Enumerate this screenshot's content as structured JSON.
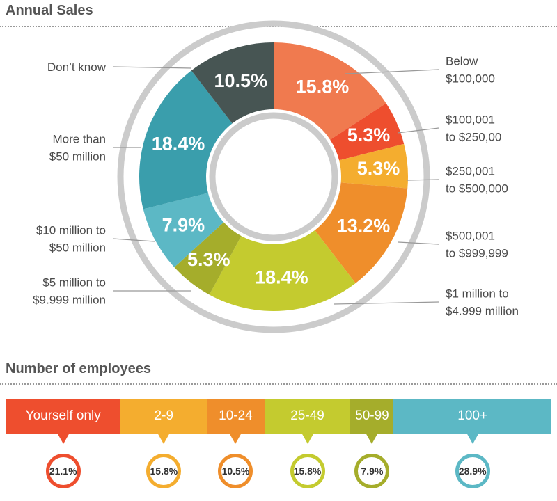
{
  "sections": {
    "sales_title": "Annual Sales",
    "employees_title": "Number of employees"
  },
  "chart_data": [
    {
      "type": "pie",
      "variant": "donut",
      "title": "Annual Sales",
      "categories": [
        [
          "Below",
          "$100,000"
        ],
        [
          "$100,001",
          "to $250,00"
        ],
        [
          "$250,001",
          "to $500,000"
        ],
        [
          "$500,001",
          "to $999,999"
        ],
        [
          "$1 million to",
          "$4.999 million"
        ],
        [
          "$5 million to",
          "$9.999 million"
        ],
        [
          "$10 million to",
          "$50 million"
        ],
        [
          "More than",
          "$50 million"
        ],
        [
          "Don’t know"
        ]
      ],
      "values": [
        15.8,
        5.3,
        5.3,
        13.2,
        18.4,
        5.3,
        7.9,
        18.4,
        10.5
      ],
      "labels": [
        "15.8%",
        "5.3%",
        "5.3%",
        "13.2%",
        "18.4%",
        "5.3%",
        "7.9%",
        "18.4%",
        "10.5%"
      ],
      "colors": [
        "#f07a4f",
        "#ee4e2e",
        "#f4ad2f",
        "#ef8e2b",
        "#c4cb2f",
        "#a5ad2b",
        "#5cb8c5",
        "#3a9eac",
        "#475553"
      ],
      "ring_color": "#cbcbcb",
      "leader_color": "#999999"
    },
    {
      "type": "bar",
      "variant": "stacked-100",
      "title": "Number of employees",
      "categories": [
        "Yourself only",
        "2-9",
        "10-24",
        "25-49",
        "50-99",
        "100+"
      ],
      "values": [
        21.1,
        15.8,
        10.5,
        15.8,
        7.9,
        28.9
      ],
      "labels": [
        "21.1%",
        "15.8%",
        "10.5%",
        "15.8%",
        "7.9%",
        "28.9%"
      ],
      "colors": [
        "#ee4e2e",
        "#f4ad2f",
        "#ef8e2b",
        "#c4cb2f",
        "#a5ad2b",
        "#5cb8c5"
      ]
    }
  ]
}
